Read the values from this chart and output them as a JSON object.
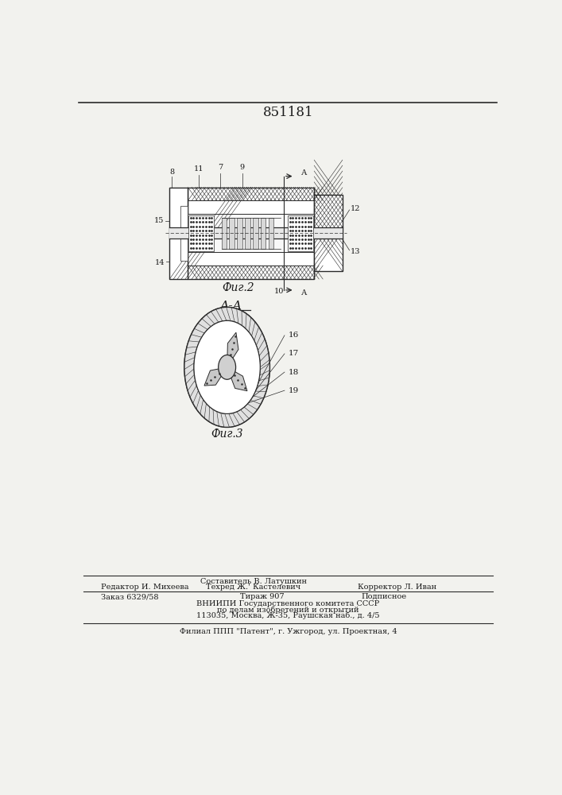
{
  "patent_number": "851181",
  "fig2_caption": "Фиг.2",
  "fig3_caption": "Фиг.3",
  "section_label": "А-А",
  "background_color": "#f2f2ee",
  "text_color": "#1a1a1a",
  "line_color": "#2a2a2a",
  "footer_line1_left": "Редактор И. Михеева",
  "footer_line1_center": "Составитель В. Латушкин",
  "footer_line1_right": "Техред Ж. Кастелевич   Корректор Л. Иван",
  "footer_line2_left": "Заказ 6329/58",
  "footer_line2_center": "Тираж 907",
  "footer_line2_right": "Подписное",
  "footer_line3": "ВНИИПИ Государственного комитета СССР",
  "footer_line4": "по делам изобретений и открытий",
  "footer_line5": "113035, Москва, Ж-35, Раушская наб., д. 4/5",
  "footer_bottom": "Филиал ППП Патент, г. Ужгород, ул. Проектная, 4"
}
